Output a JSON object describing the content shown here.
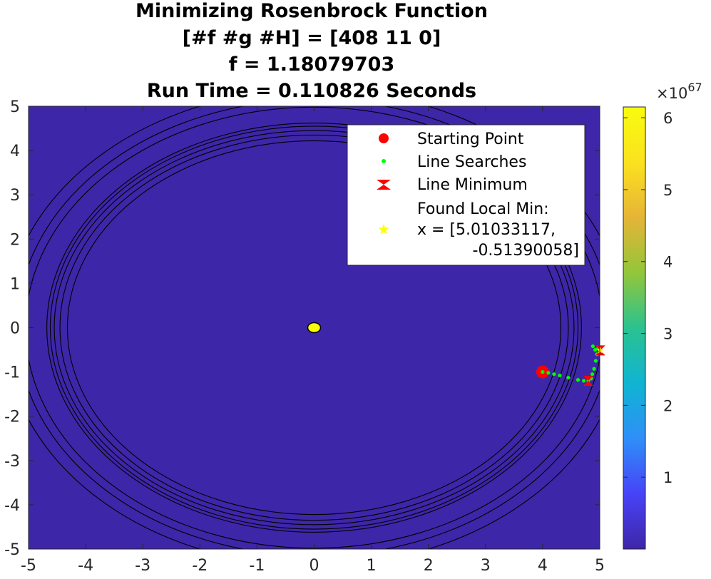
{
  "chart_data": {
    "type": "contour",
    "title_lines": [
      "Minimizing Rosenbrock Function",
      "[#f #g #H] = [408 11 0]",
      "f = 1.18079703",
      "Run Time = 0.110826 Seconds"
    ],
    "xlim": [
      -5,
      5
    ],
    "ylim": [
      -5,
      5
    ],
    "x_ticks": [
      "-5",
      "-4",
      "-3",
      "-2",
      "-1",
      "0",
      "1",
      "2",
      "3",
      "4",
      "5"
    ],
    "y_ticks": [
      "5",
      "4",
      "3",
      "2",
      "1",
      "0",
      "-1",
      "-2",
      "-3",
      "-4",
      "-5"
    ],
    "colorbar": {
      "exponent_base": "×10",
      "exponent_power": "67",
      "ticks": [
        "6",
        "5",
        "4",
        "3",
        "2",
        "1"
      ],
      "tick_values": [
        6,
        5,
        4,
        3,
        2,
        1
      ],
      "range": [
        0,
        6.15
      ],
      "colormap": [
        "#3e26a8",
        "#4743f8",
        "#2f8ff8",
        "#10b4d2",
        "#2ac28f",
        "#93c63a",
        "#e6b437",
        "#fbe21f",
        "#f9fb0e"
      ]
    },
    "background_color": "#3e26a8",
    "contour_rings": [
      {
        "rx": 4.32,
        "ry": 4.22,
        "cx": 0.0,
        "cy": 0.0
      },
      {
        "rx": 4.45,
        "ry": 4.35,
        "cx": 0.0,
        "cy": 0.0
      },
      {
        "rx": 4.55,
        "ry": 4.45,
        "cx": 0.0,
        "cy": 0.0
      },
      {
        "rx": 4.62,
        "ry": 4.55,
        "cx": 0.0,
        "cy": 0.0
      },
      {
        "rx": 4.68,
        "ry": 4.62,
        "cx": 0.0,
        "cy": 0.0
      },
      {
        "rx": 5.05,
        "ry": 4.98,
        "cx": 0.0,
        "cy": 0.0
      },
      {
        "rx": 5.2,
        "ry": 5.15,
        "cx": 0.0,
        "cy": 0.0
      },
      {
        "rx": 5.42,
        "ry": 5.38,
        "cx": 0.0,
        "cy": 0.0
      }
    ],
    "center_peak": {
      "x": 0.0,
      "y": 0.0,
      "color": "#f9fb0e"
    },
    "starting_point": {
      "x": 4.0,
      "y": -1.0,
      "color": "#ff0000"
    },
    "line_searches": {
      "color": "#00ff00",
      "points": [
        [
          4.0,
          -1.0
        ],
        [
          4.1,
          -1.02
        ],
        [
          4.2,
          -1.05
        ],
        [
          4.3,
          -1.08
        ],
        [
          4.45,
          -1.13
        ],
        [
          4.62,
          -1.18
        ],
        [
          4.72,
          -1.2
        ],
        [
          4.8,
          -1.2
        ],
        [
          4.85,
          -1.15
        ],
        [
          4.87,
          -1.05
        ],
        [
          4.9,
          -0.93
        ],
        [
          4.93,
          -0.75
        ],
        [
          4.95,
          -0.6
        ],
        [
          4.92,
          -0.5
        ],
        [
          4.88,
          -0.42
        ],
        [
          4.97,
          -0.47
        ],
        [
          5.01,
          -0.51
        ]
      ]
    },
    "line_minima": {
      "color": "#ff0000",
      "points": [
        [
          4.8,
          -1.2
        ],
        [
          5.01,
          -0.514
        ]
      ]
    },
    "local_min": {
      "x": 5.01033117,
      "y": -0.51390058,
      "color": "#ffff00"
    },
    "legend": {
      "placement": "top-right",
      "entries": [
        {
          "label": "Starting Point",
          "marker": "circle"
        },
        {
          "label": "Line Searches",
          "marker": "dot"
        },
        {
          "label": "Line Minimum",
          "marker": "hourglass"
        },
        {
          "label": "Found Local Min:",
          "label2": "x = [5.01033117,",
          "label3": "-0.51390058]",
          "marker": "star"
        }
      ]
    }
  }
}
